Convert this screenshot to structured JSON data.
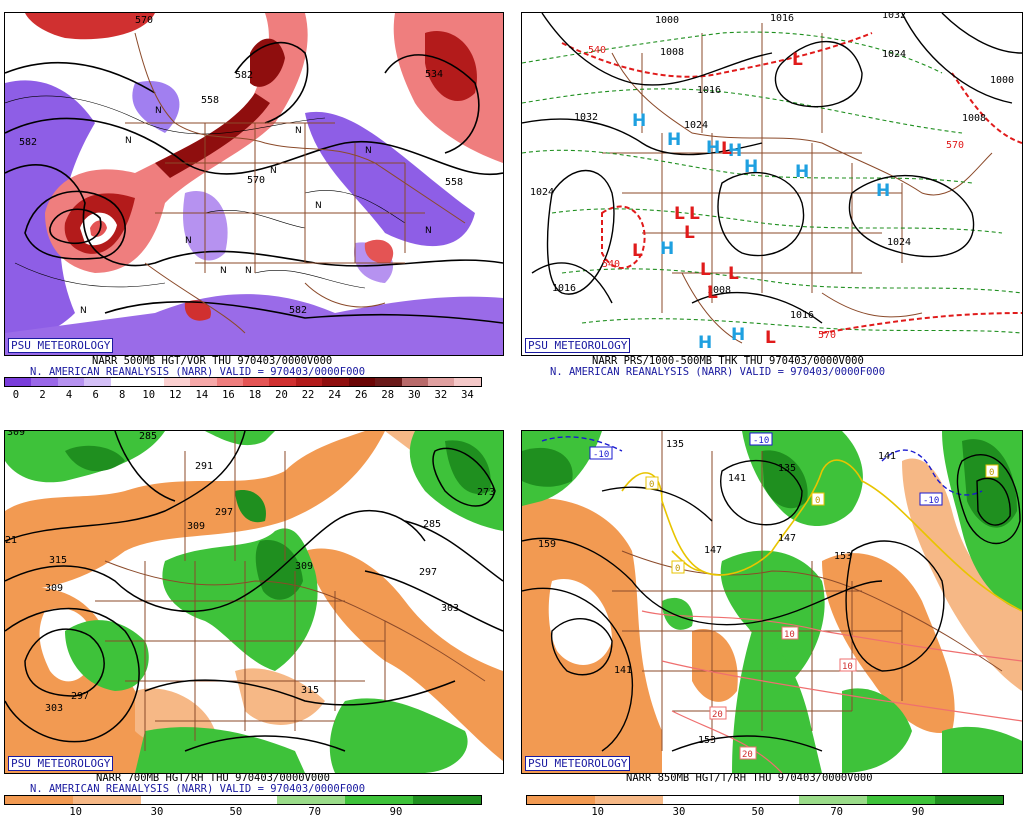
{
  "tag": "PSU METEOROLOGY",
  "valid_line": "N. AMERICAN REANALYSIS (NARR) VALID = 970403/0000F000",
  "panels": {
    "p500": {
      "title": "NARR 500MB HGT/VOR THU 970403/0000V000",
      "ticks": [
        "0",
        "2",
        "4",
        "6",
        "8",
        "10",
        "12",
        "14",
        "16",
        "18",
        "20",
        "22",
        "24",
        "26",
        "28",
        "30",
        "32",
        "34"
      ],
      "colors": [
        "#7a3ddb",
        "#9a68e8",
        "#b692f0",
        "#d4c0f7",
        "#ffffff",
        "#ffffff",
        "#fbd0d0",
        "#f6a8a8",
        "#ef7e7e",
        "#e45454",
        "#d03030",
        "#b31b1b",
        "#8f0e0e",
        "#6b0505",
        "#6a1a1a",
        "#b86a6a",
        "#e0a0a0",
        "#f4c8c8"
      ],
      "labels": [
        "582",
        "558",
        "570",
        "582",
        "558",
        "582",
        "534",
        "570"
      ]
    },
    "pprs": {
      "title": "NARR PRS/1000-500MB THK THU 970403/0000V000",
      "labels": [
        "1000",
        "1008",
        "1016",
        "1024",
        "1032",
        "1024",
        "1016",
        "1008",
        "1000",
        "1016",
        "1024",
        "1032",
        "1008",
        "1016",
        "1024",
        "540",
        "570",
        "540",
        "570"
      ],
      "highs": [
        "H",
        "H",
        "H",
        "H",
        "H",
        "H",
        "H",
        "H",
        "H",
        "H"
      ],
      "lows": [
        "L",
        "L",
        "L",
        "L",
        "L",
        "L",
        "L",
        "L",
        "L",
        "L"
      ]
    },
    "p700": {
      "title": "NARR 700MB HGT/RH THU 970403/0000V000",
      "ticks": [
        "10",
        "30",
        "50",
        "70",
        "90"
      ],
      "colors": [
        "#f29a52",
        "#f6b886",
        "#ffffff",
        "#ffffff",
        "#9bdc8a",
        "#3ec23a",
        "#1f8f1f"
      ],
      "labels": [
        "309",
        "285",
        "291",
        "297",
        "309",
        "315",
        "309",
        "297",
        "303",
        "309",
        "315",
        "273",
        "285",
        "297",
        "303",
        "21"
      ]
    },
    "p850": {
      "title": "NARR 850MB HGT/T/RH THU 970403/0000V000",
      "ticks": [
        "10",
        "30",
        "50",
        "70",
        "90"
      ],
      "colors": [
        "#f29a52",
        "#f6b886",
        "#ffffff",
        "#ffffff",
        "#9bdc8a",
        "#3ec23a",
        "#1f8f1f"
      ],
      "labels": [
        "135",
        "141",
        "135",
        "147",
        "153",
        "159",
        "141",
        "147",
        "153",
        "141"
      ],
      "box_labels": [
        "-10",
        "-10",
        "-10",
        "0",
        "0",
        "0",
        "10",
        "10",
        "20",
        "20",
        "0"
      ]
    }
  }
}
